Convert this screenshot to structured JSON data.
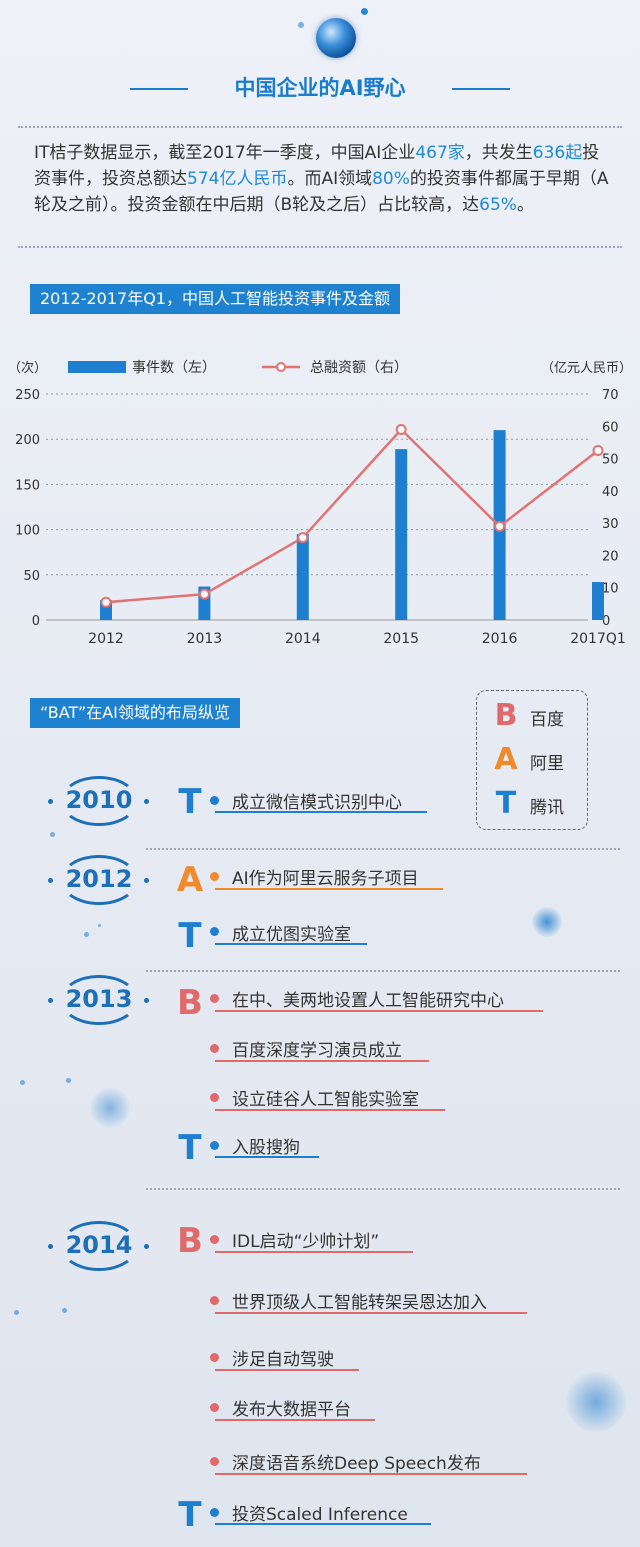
{
  "header": {
    "title": "中国企业的AI野心"
  },
  "intro": {
    "p1": "IT桔子数据显示，截至2017年一季度，中国AI企业",
    "h1": "467家",
    "p2": "，共发生",
    "h2": "636起",
    "p3": "投资事件，投资总额达",
    "h3": "574亿人民币",
    "p4": "。而AI领域",
    "h4": "80%",
    "p5": "的投资事件都属于早期（A轮及之前）。投资金额在中后期（B轮及之后）占比较高，达",
    "h5": "65%",
    "p6": "。"
  },
  "chart_section": {
    "label": "2012-2017年Q1，中国人工智能投资事件及金额"
  },
  "chart_data": {
    "type": "bar",
    "categories": [
      "2012",
      "2013",
      "2014",
      "2015",
      "2016",
      "2017Q1"
    ],
    "series": [
      {
        "name": "事件数（左）",
        "type": "bar",
        "axis": "left",
        "values": [
          22,
          37,
          95,
          189,
          210,
          42
        ]
      },
      {
        "name": "总融资额（右）",
        "type": "line",
        "axis": "right",
        "values": [
          5.5,
          8,
          25.5,
          59,
          29,
          52.5
        ]
      }
    ],
    "left_unit": "（次）",
    "right_unit": "（亿元人民币）",
    "ylim_left": [
      0,
      250
    ],
    "ylim_right": [
      0,
      70
    ],
    "left_ticks": [
      "0",
      "50",
      "100",
      "150",
      "200",
      "250"
    ],
    "right_ticks": [
      "0",
      "10",
      "20",
      "30",
      "40",
      "50",
      "60",
      "70"
    ],
    "colors": {
      "bar": "#1e7fd0",
      "line": "#e27373"
    },
    "grid": "dotted horizontal"
  },
  "bat_section": {
    "label": "“BAT”在AI领域的布局纵览",
    "legend": [
      {
        "letter": "B",
        "name": "百度"
      },
      {
        "letter": "A",
        "name": "阿里"
      },
      {
        "letter": "T",
        "name": "腾讯"
      }
    ]
  },
  "timeline": [
    {
      "year": "2010",
      "events": [
        {
          "letter": "T",
          "text": "成立微信模式识别中心"
        }
      ]
    },
    {
      "year": "2012",
      "events": [
        {
          "letter": "A",
          "text": "AI作为阿里云服务子项目"
        },
        {
          "letter": "T",
          "text": "成立优图实验室"
        }
      ]
    },
    {
      "year": "2013",
      "events": [
        {
          "letter": "B",
          "text": "在中、美两地设置人工智能研究中心"
        },
        {
          "letter": "",
          "text": "百度深度学习演员成立"
        },
        {
          "letter": "",
          "text": "设立硅谷人工智能实验室"
        },
        {
          "letter": "T",
          "text": "入股搜狗"
        }
      ]
    },
    {
      "year": "2014",
      "events": [
        {
          "letter": "B",
          "text": "IDL启动“少帅计划”"
        },
        {
          "letter": "",
          "text": "世界顶级人工智能转架吴恩达加入"
        },
        {
          "letter": "",
          "text": "涉足自动驾驶"
        },
        {
          "letter": "",
          "text": "发布大数据平台"
        },
        {
          "letter": "",
          "text": "深度语音系统Deep Speech发布"
        },
        {
          "letter": "T",
          "text": "投资Scaled Inference"
        }
      ]
    }
  ],
  "colors": {
    "accent": "#1a7ccc",
    "baidu": "#e06a6a",
    "ali": "#ef8b2c",
    "tencent": "#1e7fd0"
  }
}
